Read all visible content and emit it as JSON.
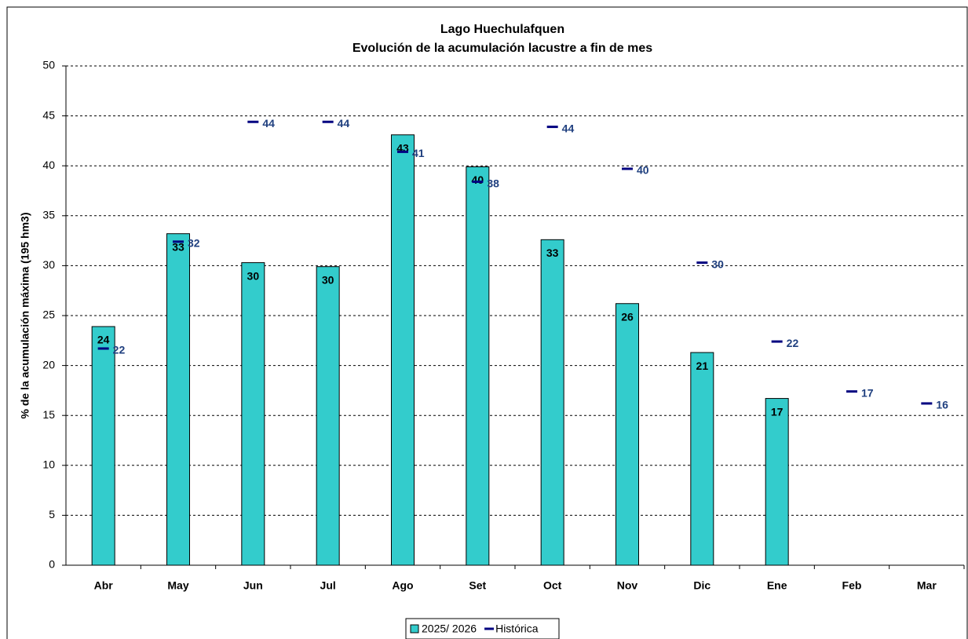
{
  "chart_data": {
    "type": "bar",
    "title": "Lago Huechulafquen",
    "subtitle": "Evolución de la acumulación lacustre a fin de mes",
    "y_label": "% de la acumulación máxima (195 hm3)",
    "categories": [
      "Abr",
      "May",
      "Jun",
      "Jul",
      "Ago",
      "Set",
      "Oct",
      "Nov",
      "Dic",
      "Ene",
      "Feb",
      "Mar"
    ],
    "series": [
      {
        "name": "2025/ 2026",
        "color": "#33cccc",
        "kind": "bar",
        "values": [
          23.9,
          33.2,
          30.3,
          29.9,
          43.1,
          39.9,
          32.6,
          26.2,
          21.3,
          16.7,
          null,
          null
        ],
        "value_labels": [
          "24",
          "33",
          "30",
          "30",
          "43",
          "40",
          "33",
          "26",
          "21",
          "17",
          null,
          null
        ]
      },
      {
        "name": "Histórica",
        "color": "#000080",
        "kind": "marker",
        "values": [
          21.7,
          32.4,
          44.4,
          44.4,
          41.4,
          38.4,
          43.9,
          39.7,
          30.3,
          22.4,
          17.4,
          16.2
        ],
        "value_labels": [
          "22",
          "32",
          "44",
          "44",
          "41",
          "38",
          "44",
          "40",
          "30",
          "22",
          "17",
          "16"
        ]
      }
    ],
    "ylim": [
      0,
      50
    ],
    "yticks": [
      0,
      5,
      10,
      15,
      20,
      25,
      30,
      35,
      40,
      45,
      50
    ],
    "grid": true
  }
}
